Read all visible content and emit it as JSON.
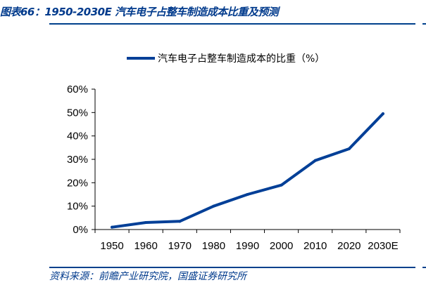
{
  "header": {
    "title": "图表66：1950-2030E 汽车电子占整车制造成本比重及预测"
  },
  "footer": {
    "source": "资料来源：前瞻产业研究院，国盛证券研究所"
  },
  "chart_data": {
    "type": "line",
    "categories": [
      "1950",
      "1960",
      "1970",
      "1980",
      "1990",
      "2000",
      "2010",
      "2020",
      "2030E"
    ],
    "series": [
      {
        "name": "汽车电子占整车制造成本的比重（%）",
        "values": [
          1,
          3,
          3.5,
          10,
          15,
          19,
          29.5,
          34.5,
          49.5
        ],
        "color": "#003f97"
      }
    ],
    "y_ticks": [
      "0%",
      "10%",
      "20%",
      "30%",
      "40%",
      "50%",
      "60%"
    ],
    "ylim": [
      0,
      60
    ],
    "legend_position": "top-center",
    "grid": false
  }
}
